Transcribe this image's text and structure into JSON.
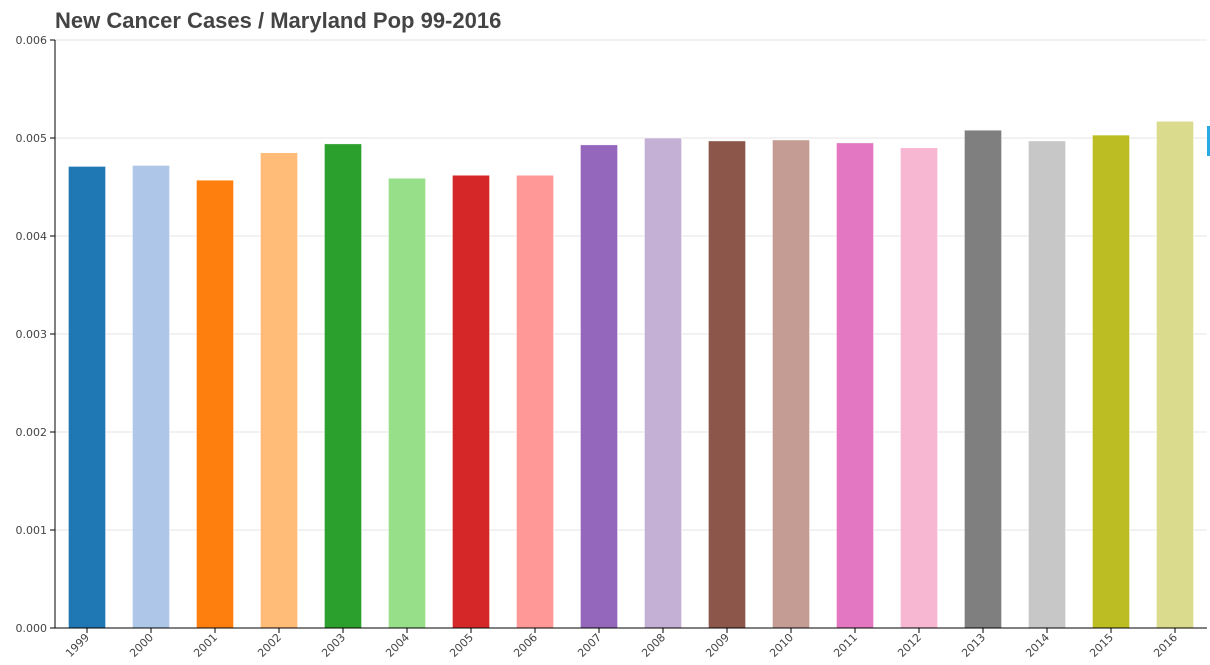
{
  "chart_data": {
    "type": "bar",
    "title": "New Cancer Cases / Maryland Pop 99-2016",
    "xlabel": "",
    "ylabel": "",
    "categories": [
      "1999",
      "2000",
      "2001",
      "2002",
      "2003",
      "2004",
      "2005",
      "2006",
      "2007",
      "2008",
      "2009",
      "2010",
      "2011",
      "2012",
      "2013",
      "2014",
      "2015",
      "2016"
    ],
    "values": [
      0.00471,
      0.00472,
      0.00457,
      0.00485,
      0.00494,
      0.00459,
      0.00462,
      0.00462,
      0.00493,
      0.005,
      0.00497,
      0.00498,
      0.00495,
      0.0049,
      0.00508,
      0.00497,
      0.00503,
      0.00517
    ],
    "colors": [
      "#1f77b4",
      "#aec7e8",
      "#ff7f0e",
      "#ffbb78",
      "#2ca02c",
      "#98df8a",
      "#d62728",
      "#ff9896",
      "#9467bd",
      "#c5b0d5",
      "#8c564b",
      "#c49c94",
      "#e377c2",
      "#f7b6d2",
      "#7f7f7f",
      "#c7c7c7",
      "#bcbd22",
      "#dbdb8d"
    ],
    "ylim": [
      0,
      0.006
    ],
    "yticks": [
      "0.000",
      "0.001",
      "0.002",
      "0.003",
      "0.004",
      "0.005",
      "0.006"
    ],
    "grid": true,
    "legend": "none"
  }
}
